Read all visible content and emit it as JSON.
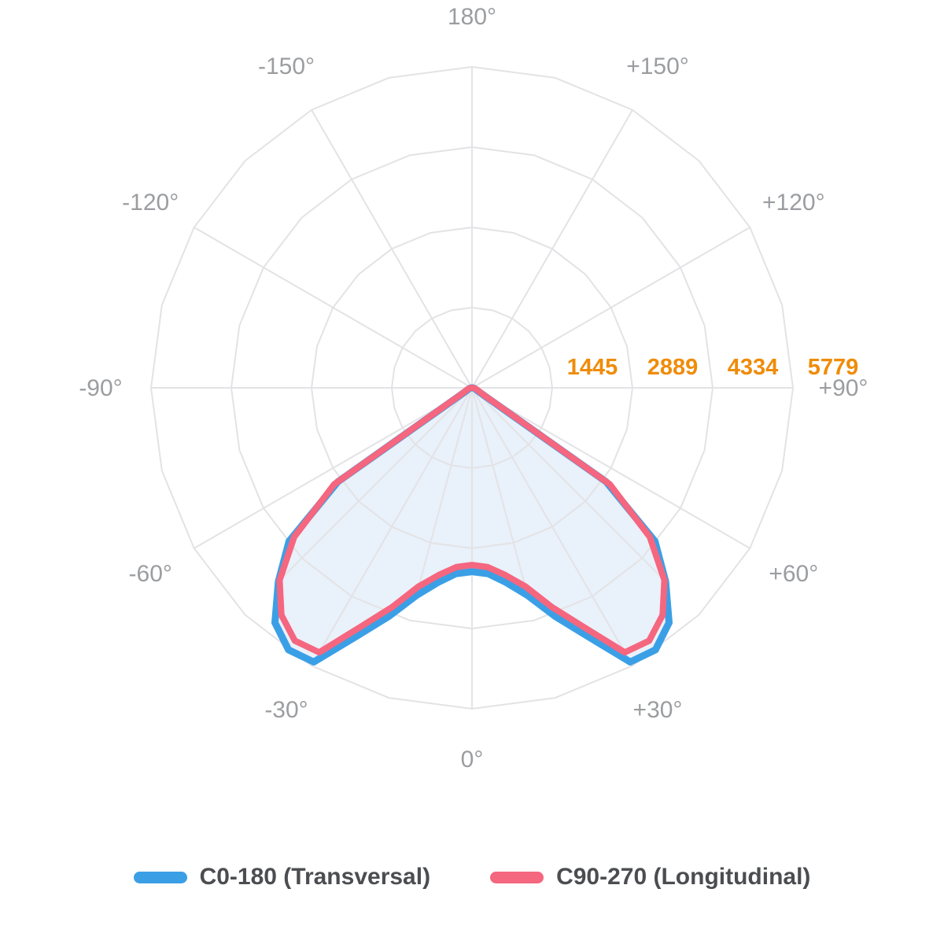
{
  "chart_data": {
    "type": "line",
    "subtype": "polar-photometric",
    "title": "",
    "angle_unit": "degrees",
    "angle_zero_direction": "down",
    "grid": {
      "rings": 4,
      "major_spoke_step_deg": 30,
      "minor_spoke_step_deg": 15,
      "minor_spokes_clipped_to_curve": true,
      "grid_color": "#e3e3e6",
      "grid_on": true
    },
    "r_axis": {
      "max": 5779,
      "tick_values": [
        1445,
        2889,
        4334,
        5779
      ],
      "tick_labels": [
        "1445",
        "2889",
        "4334",
        "5779"
      ],
      "tick_color": "#ef8c0a"
    },
    "angle_ticks": [
      {
        "deg": 0,
        "label": "0°"
      },
      {
        "deg": 30,
        "label": "+30°"
      },
      {
        "deg": 60,
        "label": "+60°"
      },
      {
        "deg": 90,
        "label": "+90°"
      },
      {
        "deg": 120,
        "label": "+120°"
      },
      {
        "deg": 150,
        "label": "+150°"
      },
      {
        "deg": 180,
        "label": "180°"
      },
      {
        "deg": -30,
        "label": "-30°"
      },
      {
        "deg": -60,
        "label": "-60°"
      },
      {
        "deg": -90,
        "label": "-90°"
      },
      {
        "deg": -120,
        "label": "-120°"
      },
      {
        "deg": -150,
        "label": "-150°"
      }
    ],
    "angle_label_color": "#9b9da0",
    "angles_deg": [
      -90,
      -85,
      -80,
      -75,
      -70,
      -65,
      -60,
      -55,
      -50,
      -45,
      -40,
      -35,
      -30,
      -25,
      -20,
      -15,
      -10,
      -5,
      0,
      5,
      10,
      15,
      20,
      25,
      30,
      35,
      40,
      45,
      50,
      55,
      60,
      65,
      70,
      75,
      80,
      85,
      90
    ],
    "series": [
      {
        "name": "C0-180 (Transversal)",
        "color": "#3b9fe6",
        "fill_color": "#e9f1fa",
        "filled": true,
        "stroke_width": 9,
        "values": [
          10,
          20,
          30,
          45,
          60,
          90,
          150,
          2950,
          4300,
          4930,
          5520,
          5760,
          5700,
          4940,
          4380,
          3870,
          3560,
          3360,
          3310,
          3360,
          3560,
          3870,
          4380,
          4940,
          5700,
          5760,
          5520,
          4930,
          4300,
          2950,
          150,
          90,
          60,
          45,
          30,
          20,
          10
        ]
      },
      {
        "name": "C90-270 (Longitudinal)",
        "color": "#f5667f",
        "fill_color": null,
        "filled": false,
        "stroke_width": 8,
        "values": [
          15,
          30,
          45,
          65,
          90,
          130,
          200,
          3030,
          4180,
          4900,
          5340,
          5560,
          5500,
          4750,
          4200,
          3700,
          3420,
          3240,
          3190,
          3240,
          3420,
          3700,
          4200,
          4750,
          5500,
          5560,
          5340,
          4900,
          4180,
          3030,
          200,
          130,
          90,
          65,
          45,
          30,
          15
        ]
      }
    ],
    "legend_position": "bottom"
  },
  "legend": {
    "items": [
      {
        "label": "C0-180 (Transversal)",
        "color": "#3b9fe6"
      },
      {
        "label": "C90-270 (Longitudinal)",
        "color": "#f5667f"
      }
    ]
  }
}
